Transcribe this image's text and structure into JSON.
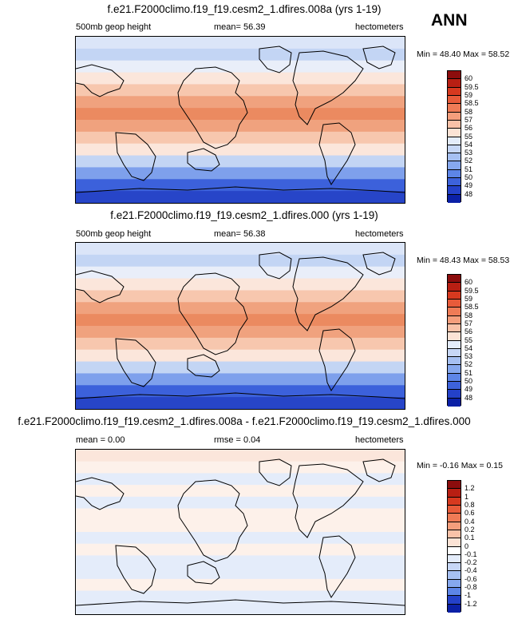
{
  "season": "ANN",
  "panels": [
    {
      "title": "f.e21.F2000climo.f19_f19.cesm2_1.dfires.008a (yrs 1-19)",
      "left_label": "500mb geop height",
      "mid_label": "mean=  56.39",
      "right_label": "hectometers",
      "minmax": "Min =  48.40 Max =  58.52",
      "bands": [
        "#dbe5f8",
        "#c3d5f4",
        "#e9eef9",
        "#fbe6db",
        "#f7c7ae",
        "#f0a27e",
        "#eb8a60",
        "#f0a27e",
        "#f7c7ae",
        "#fbe6db",
        "#c3d5f4",
        "#7ea0ec",
        "#3c61db",
        "#2745c8"
      ],
      "colorbar": {
        "labels": [
          "60",
          "59.5",
          "59",
          "58.5",
          "58",
          "57",
          "56",
          "55",
          "54",
          "53",
          "52",
          "51",
          "50",
          "49",
          "48"
        ],
        "colors": [
          "#8c0d0d",
          "#b81f13",
          "#d7391f",
          "#e85b3a",
          "#ef7b56",
          "#f59e7c",
          "#f9c2a8",
          "#fce3d5",
          "#e4ecfa",
          "#c7d7f6",
          "#a6c0f2",
          "#86a8ee",
          "#5d85e7",
          "#3d62db",
          "#2441c9",
          "#0b20a6"
        ]
      }
    },
    {
      "title": "f.e21.F2000climo.f19_f19.cesm2_1.dfires.000 (yrs 1-19)",
      "left_label": "500mb geop height",
      "mid_label": "mean=  56.38",
      "right_label": "hectometers",
      "minmax": "Min =  48.43 Max =  58.53",
      "bands": [
        "#dbe5f8",
        "#c3d5f4",
        "#e9eef9",
        "#fbe6db",
        "#f7c7ae",
        "#f0a27e",
        "#eb8a60",
        "#f0a27e",
        "#f7c7ae",
        "#fbe6db",
        "#c3d5f4",
        "#7ea0ec",
        "#3c61db",
        "#2745c8"
      ],
      "colorbar": {
        "labels": [
          "60",
          "59.5",
          "59",
          "58.5",
          "58",
          "57",
          "56",
          "55",
          "54",
          "53",
          "52",
          "51",
          "50",
          "49",
          "48"
        ],
        "colors": [
          "#8c0d0d",
          "#b81f13",
          "#d7391f",
          "#e85b3a",
          "#ef7b56",
          "#f59e7c",
          "#f9c2a8",
          "#fce3d5",
          "#e4ecfa",
          "#c7d7f6",
          "#a6c0f2",
          "#86a8ee",
          "#5d85e7",
          "#3d62db",
          "#2441c9",
          "#0b20a6"
        ]
      }
    },
    {
      "title": "f.e21.F2000climo.f19_f19.cesm2_1.dfires.008a - f.e21.F2000climo.f19_f19.cesm2_1.dfires.000",
      "left_label": "mean =  0.00",
      "mid_label": "rmse =  0.04",
      "right_label": "hectometers",
      "minmax": "Min =  -0.16 Max =  0.15",
      "bands": [
        "#fbe6db",
        "#fdf1ea",
        "#e4ecfa",
        "#fdf1ea",
        "#e4ecfa",
        "#fdf1ea",
        "#fdf1ea",
        "#e4ecfa",
        "#fdf1ea",
        "#e4ecfa",
        "#e4ecfa",
        "#fdf1ea",
        "#e4ecfa",
        "#e4ecfa"
      ],
      "colorbar": {
        "labels": [
          "1.2",
          "1",
          "0.8",
          "0.6",
          "0.4",
          "0.2",
          "0.1",
          "0",
          "-0.1",
          "-0.2",
          "-0.4",
          "-0.6",
          "-0.8",
          "-1",
          "-1.2"
        ],
        "colors": [
          "#8c0d0d",
          "#b81f13",
          "#d7391f",
          "#e85b3a",
          "#ef7b56",
          "#f59e7c",
          "#f9c2a8",
          "#fce3d5",
          "#ffffff",
          "#e4ecfa",
          "#c7d7f6",
          "#a6c0f2",
          "#86a8ee",
          "#5d85e7",
          "#2441c9",
          "#0b20a6"
        ]
      }
    }
  ]
}
